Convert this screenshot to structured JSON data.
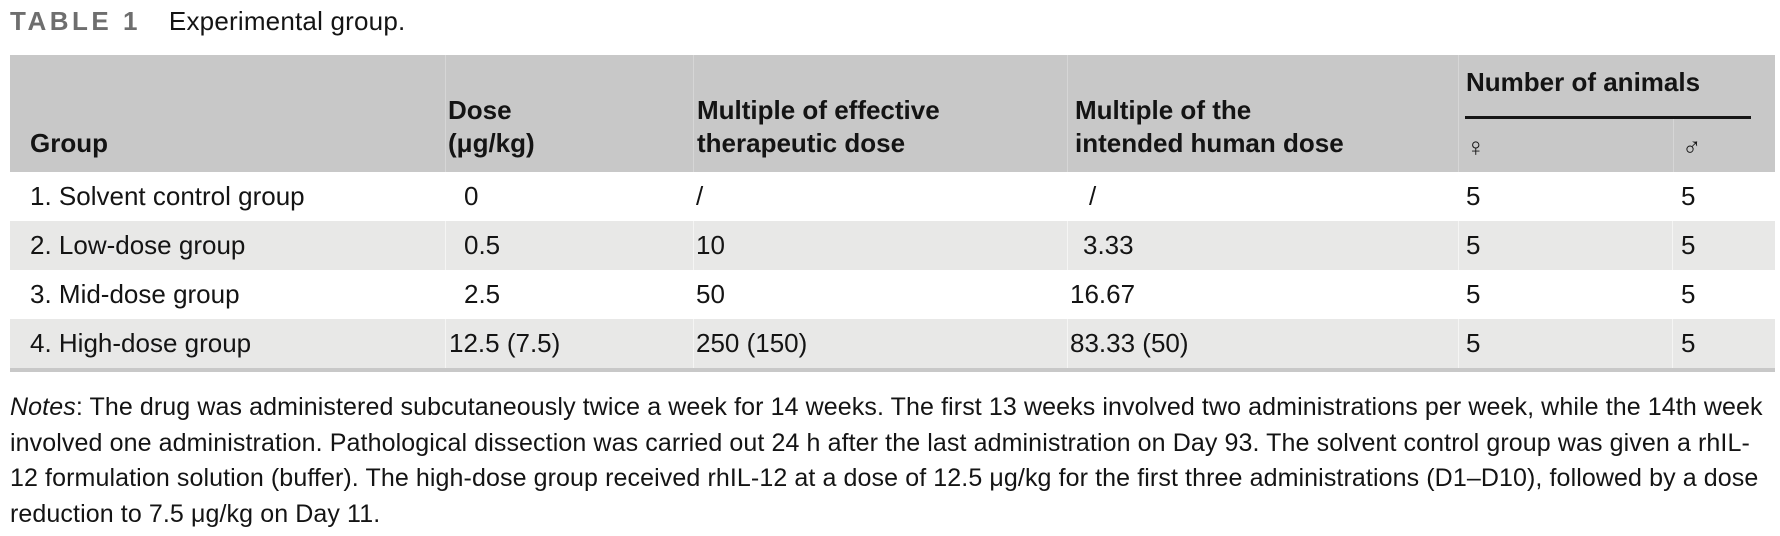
{
  "title": {
    "label": "TABLE 1",
    "caption": "Experimental group."
  },
  "table": {
    "columns": {
      "group": "Group",
      "dose_line1": "Dose",
      "dose_line2": "(μg/kg)",
      "mult_effective_line1": "Multiple of effective",
      "mult_effective_line2": "therapeutic dose",
      "mult_human_line1": "Multiple of the",
      "mult_human_line2": "intended human dose",
      "animals_group": "Number of animals",
      "female_symbol": "♀",
      "male_symbol": "♂"
    },
    "rows": [
      [
        "1. Solvent control group",
        "0",
        "/",
        "/",
        "5",
        "5"
      ],
      [
        "2. Low-dose group",
        "0.5",
        "10",
        "3.33",
        "5",
        "5"
      ],
      [
        "3. Mid-dose group",
        "2.5",
        "50",
        "16.67",
        "5",
        "5"
      ],
      [
        "4. High-dose group",
        "12.5 (7.5)",
        "250 (150)",
        "83.33 (50)",
        "5",
        "5"
      ]
    ]
  },
  "notes": {
    "label": "Notes",
    "text": ": The drug was administered subcutaneously twice a week for 14 weeks. The first 13 weeks involved two administrations per week, while the 14th week involved one administration. Pathological dissection was carried out 24 h after the last administration on Day 93. The solvent control group was given a rhIL-12 formulation solution (buffer). The high-dose group received rhIL-12 at a dose of 12.5 μg/kg for the first three administrations (D1–D10), followed by a dose reduction to 7.5 μg/kg on Day 11."
  },
  "colors": {
    "header_bg": "#c8c8c8",
    "alt_row_bg": "#e8e8e7",
    "label_gray": "#6e6e6e",
    "text": "#141414"
  }
}
